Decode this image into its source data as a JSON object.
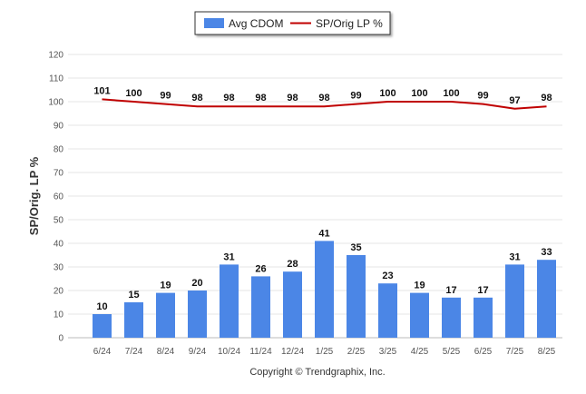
{
  "chart_data": {
    "type": "bar",
    "categories": [
      "6/24",
      "7/24",
      "8/24",
      "9/24",
      "10/24",
      "11/24",
      "12/24",
      "1/25",
      "2/25",
      "3/25",
      "4/25",
      "5/25",
      "6/25",
      "7/25",
      "8/25"
    ],
    "series": [
      {
        "name": "Avg CDOM",
        "type": "bar",
        "color": "#4b86e6",
        "values": [
          10,
          15,
          19,
          20,
          31,
          26,
          28,
          41,
          35,
          23,
          19,
          17,
          17,
          31,
          33
        ]
      },
      {
        "name": "SP/Orig LP %",
        "type": "line",
        "color": "#c00000",
        "values": [
          101,
          100,
          99,
          98,
          98,
          98,
          98,
          98,
          99,
          100,
          100,
          100,
          99,
          97,
          98
        ]
      }
    ],
    "ylabel": "SP/Orig. LP %",
    "xlabel": "",
    "ylim": [
      0,
      120
    ],
    "yticks": [
      0,
      10,
      20,
      30,
      40,
      50,
      60,
      70,
      80,
      90,
      100,
      110,
      120
    ],
    "grid": true,
    "legend_position": "top-center"
  },
  "footer": {
    "copyright": "Copyright © Trendgraphix, Inc."
  }
}
